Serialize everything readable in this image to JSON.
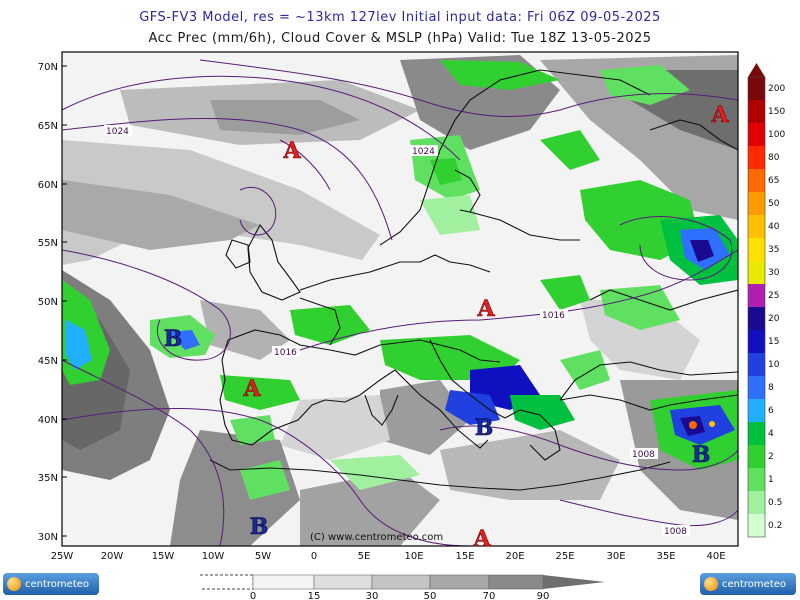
{
  "header": {
    "title_line1": "GFS-FV3 Model, res = ~13km 127lev    Initial input data: Fri 06Z 09-05-2025",
    "title_line2": "Acc Prec (mm/6h), Cloud Cover & MSLP (hPa)  Valid: Tue 18Z 13-05-2025"
  },
  "lat_labels": [
    "70N",
    "65N",
    "60N",
    "55N",
    "50N",
    "45N",
    "40N",
    "35N",
    "30N"
  ],
  "lon_labels": [
    "25W",
    "20W",
    "15W",
    "10W",
    "5W",
    "0",
    "5E",
    "10E",
    "15E",
    "20E",
    "25E",
    "30E",
    "35E",
    "40E"
  ],
  "pressure_centers": [
    {
      "type": "high",
      "letter": "A"
    },
    {
      "type": "high",
      "letter": "A"
    },
    {
      "type": "high",
      "letter": "A"
    },
    {
      "type": "high",
      "letter": "A"
    },
    {
      "type": "high",
      "letter": "A"
    },
    {
      "type": "low",
      "letter": "B"
    },
    {
      "type": "low",
      "letter": "B"
    },
    {
      "type": "low",
      "letter": "B"
    },
    {
      "type": "low",
      "letter": "B"
    }
  ],
  "isobar_labels": [
    "1024",
    "1024",
    "1016",
    "1016",
    "1008",
    "1008"
  ],
  "copyright": "(C) www.centrometeo.com",
  "precip_legend": {
    "labels": [
      "200",
      "150",
      "100",
      "80",
      "65",
      "50",
      "40",
      "35",
      "30",
      "25",
      "20",
      "15",
      "10",
      "8",
      "6",
      "4",
      "2",
      "1",
      "0.5",
      "0.2"
    ],
    "colors": [
      "#7a0a0a",
      "#b00000",
      "#e00000",
      "#ff2a00",
      "#ff6a00",
      "#ff9a00",
      "#ffc000",
      "#ffe000",
      "#e8e800",
      "#b020b0",
      "#1a0a90",
      "#1010c0",
      "#2040e0",
      "#3070ff",
      "#20b0ff",
      "#00c040",
      "#30d030",
      "#60e060",
      "#a0f0a0",
      "#d0ffd0"
    ]
  },
  "cloud_legend": {
    "labels": [
      "0",
      "15",
      "30",
      "50",
      "70",
      "90"
    ],
    "colors": [
      "#f4f4f4",
      "#dedede",
      "#c4c4c4",
      "#a8a8a8",
      "#8a8a8a",
      "#6e6e6e"
    ]
  },
  "logos": {
    "left": "centrometeo",
    "right": "centrometeo"
  }
}
